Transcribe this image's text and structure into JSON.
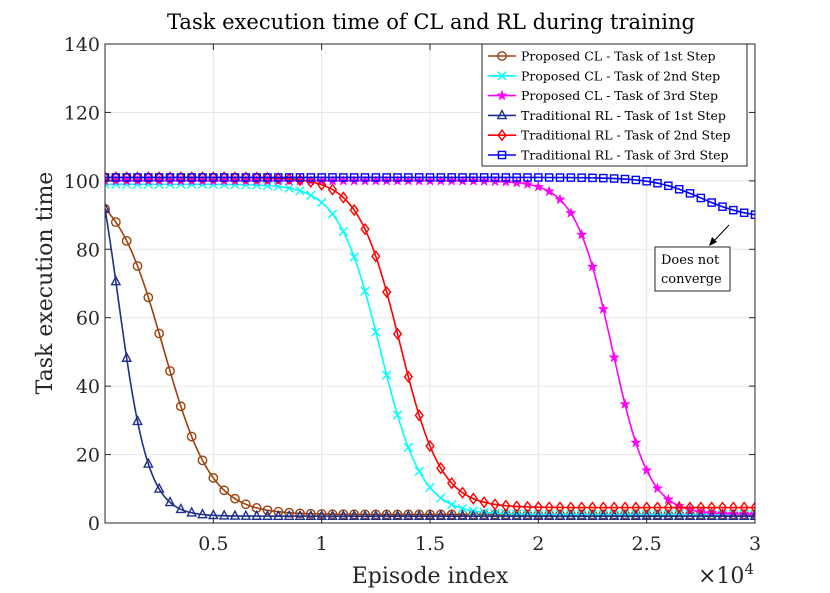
{
  "chart_data": {
    "type": "line",
    "title": "Task execution time of CL and RL during training",
    "xlabel": "Episode index",
    "ylabel": "Task execution time",
    "x_exponent_base": "×10",
    "x_exponent_power": "4",
    "xlim": [
      0,
      30000
    ],
    "ylim": [
      0,
      140
    ],
    "xticks": [
      5000,
      10000,
      15000,
      20000,
      25000,
      30000
    ],
    "xtick_labels": [
      "0.5",
      "1",
      "1.5",
      "2",
      "2.5",
      "3"
    ],
    "yticks": [
      0,
      20,
      40,
      60,
      80,
      100,
      120,
      140
    ],
    "ytick_labels": [
      "0",
      "20",
      "40",
      "60",
      "80",
      "100",
      "120",
      "140"
    ],
    "grid": true,
    "legend_position": "top-right",
    "annotation": {
      "lines": [
        "Does not",
        "converge"
      ],
      "target": [
        29000,
        80
      ]
    },
    "series": [
      {
        "name": "Proposed CL - Task of 1st Step",
        "color": "#a0410d",
        "marker": "circle",
        "sigmoid": {
          "top": 99.5,
          "bottom": 2.5,
          "mid": 2700,
          "k": 1100
        }
      },
      {
        "name": "Proposed CL - Task of 2nd Step",
        "color": "#00ffff",
        "marker": "x",
        "sigmoid": {
          "top": 99,
          "bottom": 2.5,
          "mid": 12700,
          "k": 950
        }
      },
      {
        "name": "Proposed CL - Task of 3rd Step",
        "color": "#ff00ff",
        "marker": "star",
        "sigmoid": {
          "top": 100,
          "bottom": 2.5,
          "mid": 23400,
          "k": 850
        }
      },
      {
        "name": "Traditional RL - Task of 1st Step",
        "color": "#1f2f8a",
        "marker": "triangle",
        "sigmoid": {
          "top": 130,
          "bottom": 2,
          "mid": 600,
          "k": 700
        }
      },
      {
        "name": "Traditional RL - Task of 2nd Step",
        "color": "#ff0000",
        "marker": "diamond",
        "sigmoid": {
          "top": 101,
          "bottom": 4.5,
          "mid": 13600,
          "k": 950
        }
      },
      {
        "name": "Traditional RL - Task of 3rd Step",
        "color": "#0000ff",
        "marker": "square",
        "sigmoid": {
          "top": 101,
          "bottom": 89,
          "mid": 27500,
          "k": 1100
        }
      }
    ]
  }
}
